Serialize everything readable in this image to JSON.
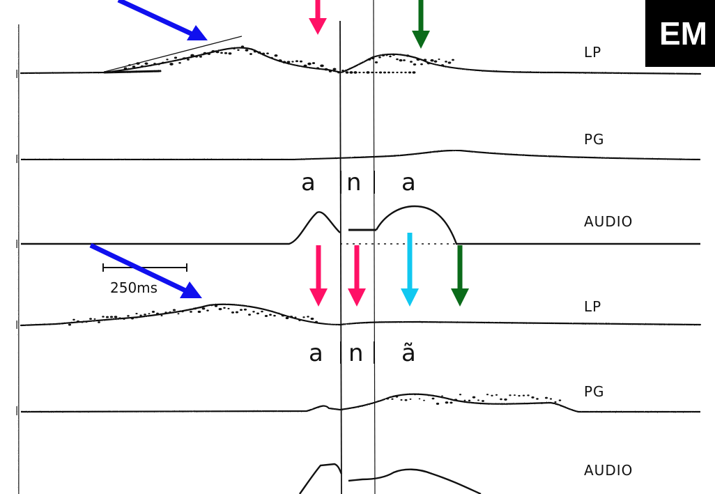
{
  "badge": {
    "text": "EM"
  },
  "channel_labels": [
    "LP",
    "PG",
    "AUDIO",
    "LP",
    "PG",
    "AUDIO"
  ],
  "phonemes_top": [
    "a",
    "n",
    "a"
  ],
  "phonemes_bottom": [
    "a",
    "n",
    "ã"
  ],
  "scale_bar": {
    "label": "250ms"
  },
  "arrow_colors": {
    "blue": "#1010ee",
    "magenta": "#ff1166",
    "green": "#0b6b1a",
    "cyan": "#11c8f0"
  }
}
